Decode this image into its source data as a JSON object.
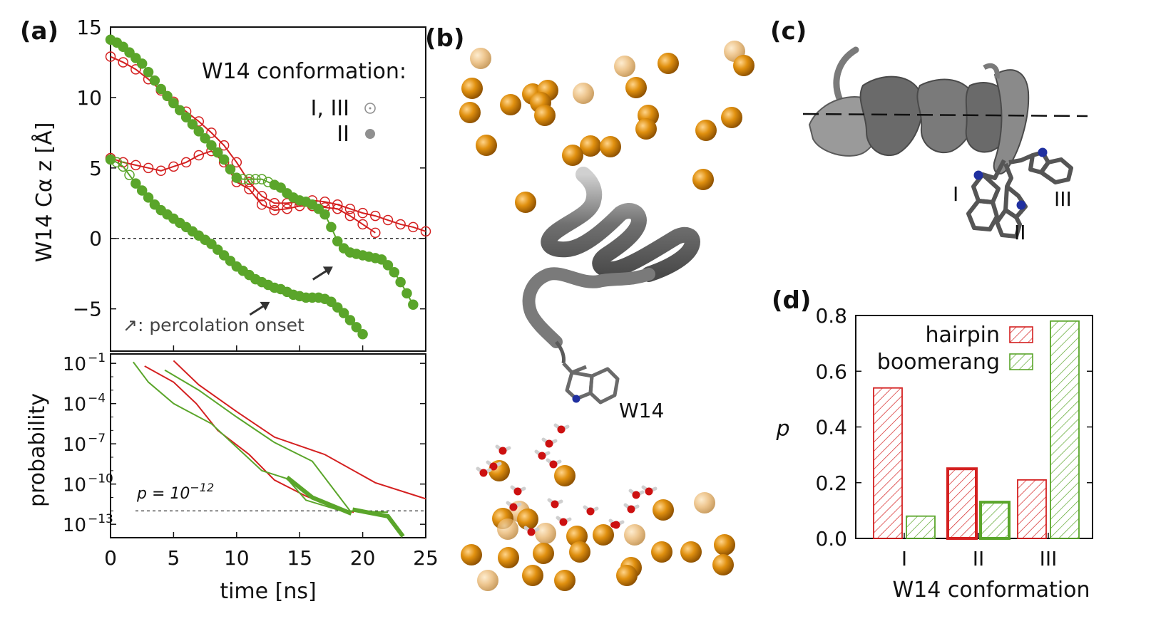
{
  "panel_labels": {
    "a": "(a)",
    "b": "(b)",
    "c": "(c)",
    "d": "(d)"
  },
  "colors": {
    "red": "#d42020",
    "green": "#5aa52a",
    "gray": "#909090",
    "orange": "#d4830f",
    "protein": "#808080",
    "arrow": "#333333"
  },
  "panel_a": {
    "ylabel": "W14 Cα z [Å]",
    "legend_title": "W14 conformation:",
    "legend_open": "I, III",
    "legend_filled": "II",
    "annotation": "↗: percolation onset"
  },
  "panel_a_bottom": {
    "xlabel": "time [ns]",
    "ylabel": "probability",
    "threshold_label": "p = 10",
    "threshold_exp": "−12"
  },
  "panel_b": {
    "label_w14": "W14"
  },
  "panel_c": {
    "label_I": "I",
    "label_II": "II",
    "label_III": "III"
  },
  "chart_data": [
    {
      "type": "line",
      "title": "",
      "xlabel": "time [ns]",
      "ylabel": "W14 Cα z [Å]",
      "xlim": [
        0,
        25
      ],
      "ylim": [
        -8,
        15
      ],
      "xticks": [
        0,
        5,
        10,
        15,
        20,
        25
      ],
      "yticks": [
        -5,
        0,
        5,
        10,
        15
      ],
      "reference_line_y": 0,
      "series": [
        {
          "name": "red-1",
          "color": "red",
          "x": [
            0,
            1,
            2,
            3,
            4,
            5,
            6,
            7,
            8,
            9,
            10,
            11,
            12,
            13,
            14,
            15,
            16,
            17,
            18,
            19,
            20,
            21,
            22,
            23,
            24,
            25
          ],
          "y": [
            12.9,
            12.5,
            12.0,
            11.3,
            10.5,
            9.7,
            9.0,
            8.3,
            7.5,
            6.6,
            5.4,
            4.0,
            3.0,
            2.5,
            2.5,
            2.6,
            2.7,
            2.6,
            2.4,
            2.1,
            1.8,
            1.6,
            1.3,
            1.0,
            0.8,
            0.5
          ]
        },
        {
          "name": "red-2",
          "color": "red",
          "x": [
            0,
            1,
            2,
            3,
            4,
            5,
            6,
            7,
            8,
            9,
            10,
            11,
            12,
            13,
            14,
            15,
            16,
            17,
            18,
            19,
            20,
            21
          ],
          "y": [
            5.7,
            5.4,
            5.2,
            5.0,
            4.8,
            5.1,
            5.4,
            5.9,
            6.2,
            5.4,
            4.0,
            3.5,
            2.4,
            2.0,
            2.1,
            2.3,
            2.3,
            2.2,
            2.1,
            1.6,
            1.0,
            0.4
          ]
        },
        {
          "name": "green-1",
          "color": "green",
          "x": [
            0,
            0.5,
            1,
            1.5,
            2,
            2.5,
            3,
            3.5,
            4,
            4.5,
            5,
            5.5,
            6,
            6.5,
            7,
            7.5,
            8,
            8.5,
            9,
            9.5,
            10,
            10.5,
            11,
            11.5,
            12,
            12.5,
            13,
            13.5,
            14,
            14.5,
            15,
            15.5,
            16,
            16.5,
            17,
            17.5,
            18,
            18.5,
            19,
            19.5,
            20,
            20.5,
            21,
            21.5,
            22,
            22.5,
            23,
            23.5,
            24
          ],
          "y": [
            14.1,
            13.9,
            13.6,
            13.2,
            12.8,
            12.4,
            11.8,
            11.2,
            10.6,
            10.1,
            9.6,
            9.1,
            8.6,
            8.1,
            7.6,
            7.1,
            6.6,
            6.1,
            5.6,
            4.9,
            4.3,
            4.2,
            4.2,
            4.2,
            4.2,
            4.0,
            3.8,
            3.6,
            3.2,
            2.9,
            2.7,
            2.6,
            2.4,
            2.1,
            1.7,
            0.8,
            -0.2,
            -0.7,
            -1.0,
            -1.1,
            -1.2,
            -1.3,
            -1.4,
            -1.5,
            -1.9,
            -2.4,
            -3.1,
            -3.9,
            -4.7
          ],
          "filled": [
            true,
            true,
            true,
            true,
            true,
            true,
            true,
            true,
            true,
            true,
            true,
            true,
            true,
            true,
            true,
            true,
            true,
            true,
            true,
            true,
            true,
            false,
            false,
            false,
            false,
            false,
            true,
            true,
            true,
            true,
            true,
            true,
            true,
            true,
            true,
            true,
            true,
            true,
            true,
            true,
            true,
            true,
            true,
            true,
            true,
            true,
            true,
            true,
            true
          ]
        },
        {
          "name": "green-2",
          "color": "green",
          "x": [
            0,
            0.5,
            1,
            1.5,
            2,
            2.5,
            3,
            3.5,
            4,
            4.5,
            5,
            5.5,
            6,
            6.5,
            7,
            7.5,
            8,
            8.5,
            9,
            9.5,
            10,
            10.5,
            11,
            11.5,
            12,
            12.5,
            13,
            13.5,
            14,
            14.5,
            15,
            15.5,
            16,
            16.5,
            17,
            17.5,
            18,
            18.5,
            19,
            19.5,
            20
          ],
          "y": [
            5.6,
            5.4,
            5.1,
            4.5,
            3.9,
            3.4,
            2.9,
            2.4,
            2.0,
            1.7,
            1.4,
            1.1,
            0.8,
            0.5,
            0.2,
            -0.1,
            -0.4,
            -0.8,
            -1.2,
            -1.6,
            -2.0,
            -2.3,
            -2.6,
            -2.9,
            -3.1,
            -3.3,
            -3.5,
            -3.6,
            -3.8,
            -4.0,
            -4.1,
            -4.2,
            -4.2,
            -4.2,
            -4.3,
            -4.5,
            -4.9,
            -5.3,
            -5.8,
            -6.3,
            -6.8
          ],
          "filled": [
            true,
            false,
            false,
            false,
            true,
            true,
            true,
            true,
            true,
            true,
            true,
            true,
            true,
            true,
            true,
            true,
            true,
            true,
            true,
            true,
            true,
            true,
            true,
            true,
            true,
            true,
            true,
            true,
            true,
            true,
            true,
            true,
            true,
            true,
            true,
            true,
            true,
            true,
            true,
            true,
            true
          ]
        }
      ],
      "arrows_at": [
        [
          18.2,
          -1.4
        ],
        [
          13.2,
          -3.9
        ]
      ]
    },
    {
      "type": "line",
      "xlabel": "time [ns]",
      "ylabel": "probability",
      "yscale": "log",
      "xlim": [
        0,
        25
      ],
      "ylim_log10": [
        -14,
        -0.3
      ],
      "xticks": [
        0,
        5,
        10,
        15,
        20,
        25
      ],
      "ytick_exponents": [
        -1,
        -4,
        -7,
        -10,
        -13
      ],
      "threshold_log10": -12,
      "series": [
        {
          "name": "red-1",
          "color": "red",
          "x": [
            5,
            7,
            10,
            13,
            17,
            21,
            25
          ],
          "y_log10": [
            -0.8,
            -2.6,
            -4.6,
            -6.5,
            -7.8,
            -9.9,
            -11.1
          ]
        },
        {
          "name": "red-2",
          "color": "red",
          "x": [
            2.7,
            5,
            6.8,
            8.5,
            11,
            13,
            15.5,
            18,
            19.3
          ],
          "y_log10": [
            -1.2,
            -2.4,
            -4.0,
            -6.0,
            -7.8,
            -9.7,
            -10.9,
            -11.8,
            -12.1
          ]
        },
        {
          "name": "green-1",
          "color": "green",
          "x": [
            4.3,
            7,
            10,
            13,
            16,
            19,
            22
          ],
          "y_log10": [
            -1.5,
            -3.0,
            -5.0,
            -6.9,
            -8.3,
            -12.0,
            -12.1
          ]
        },
        {
          "name": "green-2",
          "color": "green",
          "x": [
            1.8,
            3,
            5,
            8,
            12,
            14,
            15.5,
            19
          ],
          "y_log10": [
            -0.9,
            -2.4,
            -4.0,
            -5.5,
            -9.0,
            -9.6,
            -11.2,
            -12.2
          ]
        },
        {
          "name": "green-thick-1",
          "color": "green",
          "thick": true,
          "x": [
            14,
            16,
            19.1
          ],
          "y_log10": [
            -9.5,
            -11.0,
            -12.2
          ]
        },
        {
          "name": "green-thick-2",
          "color": "green",
          "thick": true,
          "x": [
            19.2,
            22,
            23.2
          ],
          "y_log10": [
            -11.9,
            -12.4,
            -13.9
          ]
        }
      ]
    },
    {
      "type": "bar",
      "xlabel": "W14 conformation",
      "ylabel": "p",
      "categories": [
        "I",
        "II",
        "III"
      ],
      "ylim": [
        0,
        0.8
      ],
      "yticks": [
        0.0,
        0.2,
        0.4,
        0.6,
        0.8
      ],
      "series": [
        {
          "name": "hairpin",
          "color": "red",
          "values": [
            0.54,
            0.25,
            0.21
          ]
        },
        {
          "name": "boomerang",
          "color": "green",
          "values": [
            0.08,
            0.13,
            0.78
          ]
        }
      ],
      "highlight_category": "II"
    }
  ]
}
